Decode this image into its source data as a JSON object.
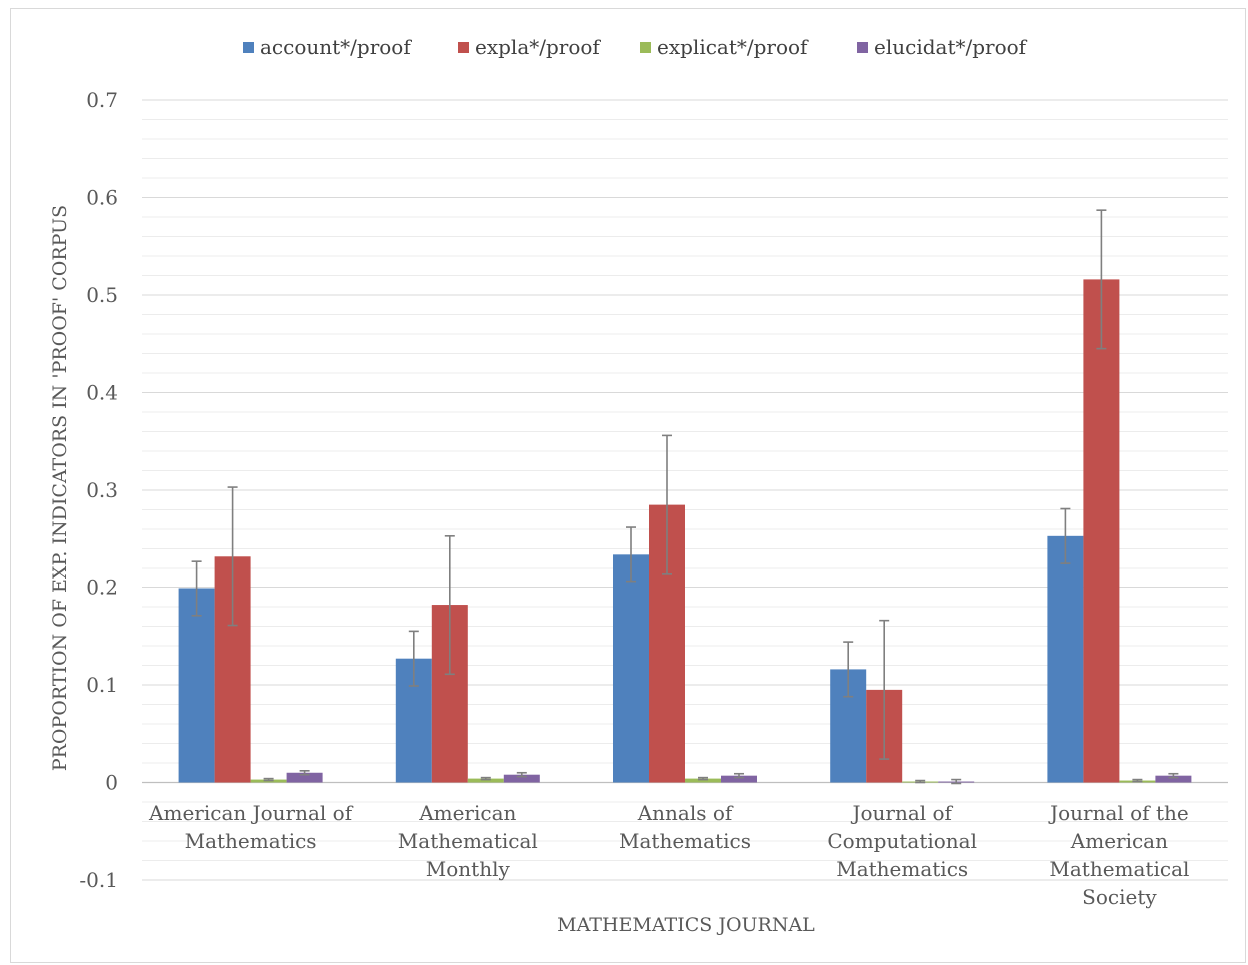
{
  "chart_data": {
    "type": "bar",
    "xlabel": "MATHEMATICS JOURNAL",
    "ylabel": "PROPORTION OF EXP. INDICATORS IN 'PROOF' CORPUS",
    "ylim": [
      -0.1,
      0.7
    ],
    "major_ticks": [
      -0.1,
      0,
      0.1,
      0.2,
      0.3,
      0.4,
      0.5,
      0.6,
      0.7
    ],
    "tick_labels": [
      "-0.1",
      "0",
      "0.1",
      "0.2",
      "0.3",
      "0.4",
      "0.5",
      "0.6",
      "0.7"
    ],
    "grid": true,
    "legend_position": "top",
    "categories": [
      [
        "American Journal of",
        "Mathematics"
      ],
      [
        "American",
        "Mathematical",
        "Monthly"
      ],
      [
        "Annals of",
        "Mathematics"
      ],
      [
        "Journal of",
        "Computational",
        "Mathematics"
      ],
      [
        "Journal of the",
        "American",
        "Mathematical",
        "Society"
      ]
    ],
    "series": [
      {
        "name": "account*/proof",
        "color": "#4f81bd",
        "values": [
          0.199,
          0.127,
          0.234,
          0.116,
          0.253
        ],
        "errors": [
          0.028,
          0.028,
          0.028,
          0.028,
          0.028
        ]
      },
      {
        "name": "expla*/proof",
        "color": "#c0504d",
        "values": [
          0.232,
          0.182,
          0.285,
          0.095,
          0.516
        ],
        "errors": [
          0.071,
          0.071,
          0.071,
          0.071,
          0.071
        ]
      },
      {
        "name": "explicat*/proof",
        "color": "#9bbb59",
        "values": [
          0.003,
          0.004,
          0.004,
          0.001,
          0.002
        ],
        "errors": [
          0.001,
          0.001,
          0.001,
          0.001,
          0.001
        ]
      },
      {
        "name": "elucidat*/proof",
        "color": "#8064a2",
        "values": [
          0.01,
          0.008,
          0.007,
          0.001,
          0.007
        ],
        "errors": [
          0.002,
          0.002,
          0.002,
          0.002,
          0.002
        ]
      }
    ]
  }
}
